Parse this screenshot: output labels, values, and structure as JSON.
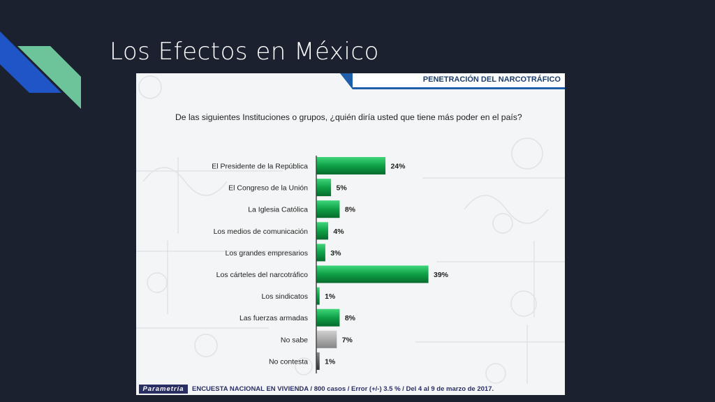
{
  "slide": {
    "title": "Los Efectos en México",
    "colors": {
      "background": "#1c2130",
      "accent_dark": "#1f55c7",
      "accent_light": "#6dc39a"
    }
  },
  "panel": {
    "header": "PENETRACIÓN DEL NARCOTRÁFICO",
    "question": "De las siguientes Instituciones o grupos, ¿quién diría usted que tiene más poder en el país?",
    "footer_brand": "Parametría",
    "footer_text": "ENCUESTA NACIONAL EN VIVIENDA / 800 casos / Error (+/-) 3.5 % / Del 4 al 9 de marzo de 2017."
  },
  "chart_data": {
    "type": "bar",
    "orientation": "horizontal",
    "title": "",
    "xlabel": "",
    "ylabel": "",
    "xlim": [
      0,
      39
    ],
    "grid": false,
    "categories": [
      "El Presidente de la República",
      "El Congreso de la Unión",
      "La Iglesia Católica",
      "Los medios de comunicación",
      "Los grandes empresarios",
      "Los cárteles del narcotráfico",
      "Los sindicatos",
      "Las fuerzas armadas",
      "No sabe",
      "No contesta"
    ],
    "values": [
      24,
      5,
      8,
      4,
      3,
      39,
      1,
      8,
      7,
      1
    ],
    "value_labels": [
      "24%",
      "5%",
      "8%",
      "4%",
      "3%",
      "39%",
      "1%",
      "8%",
      "7%",
      "1%"
    ],
    "bar_colors": [
      "#13a84a",
      "#13a84a",
      "#13a84a",
      "#13a84a",
      "#13a84a",
      "#13a84a",
      "#13a84a",
      "#13a84a",
      "#9b9b9b",
      "#555555"
    ]
  }
}
